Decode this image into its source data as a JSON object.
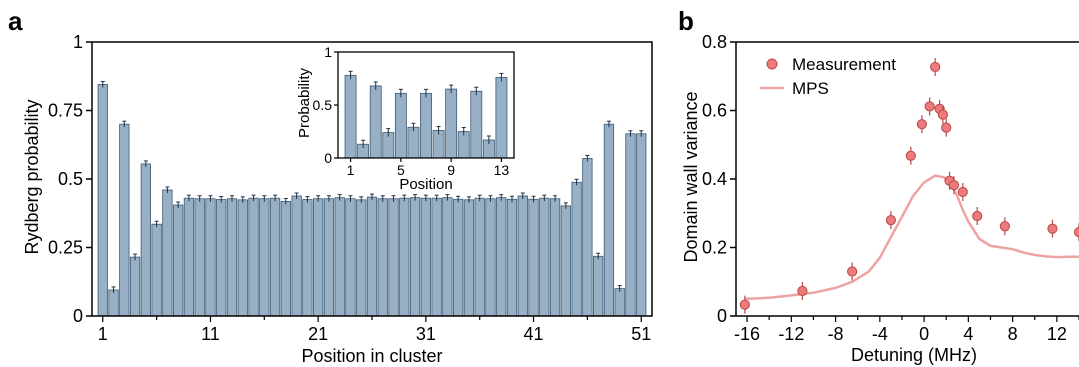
{
  "panels": {
    "a": "a",
    "b": "b"
  },
  "chart_data": [
    {
      "id": "a-main",
      "type": "bar",
      "xlabel": "Position in cluster",
      "ylabel": "Rydberg probability",
      "xlim": [
        0,
        52
      ],
      "ylim": [
        0,
        1
      ],
      "xticks": [
        1,
        11,
        21,
        31,
        41,
        51
      ],
      "yticks": [
        0,
        0.25,
        0.5,
        0.75,
        1
      ],
      "ytick_labels": [
        "0",
        "0.25",
        "0.5",
        "0.75",
        "1"
      ],
      "colors": {
        "bar_fill": "#97b0c6",
        "bar_edge": "#3f5a72"
      },
      "x": [
        1,
        2,
        3,
        4,
        5,
        6,
        7,
        8,
        9,
        10,
        11,
        12,
        13,
        14,
        15,
        16,
        17,
        18,
        19,
        20,
        21,
        22,
        23,
        24,
        25,
        26,
        27,
        28,
        29,
        30,
        31,
        32,
        33,
        34,
        35,
        36,
        37,
        38,
        39,
        40,
        41,
        42,
        43,
        44,
        45,
        46,
        47,
        48,
        49,
        50,
        51
      ],
      "values": [
        0.845,
        0.095,
        0.7,
        0.215,
        0.555,
        0.335,
        0.46,
        0.405,
        0.43,
        0.428,
        0.428,
        0.425,
        0.428,
        0.424,
        0.43,
        0.428,
        0.43,
        0.418,
        0.438,
        0.425,
        0.428,
        0.428,
        0.432,
        0.428,
        0.424,
        0.434,
        0.428,
        0.428,
        0.43,
        0.432,
        0.43,
        0.43,
        0.432,
        0.426,
        0.424,
        0.43,
        0.428,
        0.432,
        0.426,
        0.438,
        0.426,
        0.43,
        0.428,
        0.402,
        0.488,
        0.575,
        0.218,
        0.7,
        0.1,
        0.665,
        0.665
      ]
    },
    {
      "id": "a-inset",
      "type": "bar",
      "xlabel": "Position",
      "ylabel": "Probability",
      "xlim": [
        0,
        14
      ],
      "ylim": [
        0,
        1
      ],
      "xticks": [
        1,
        5,
        9,
        13
      ],
      "yticks": [
        0,
        0.5,
        1
      ],
      "ytick_labels": [
        "0",
        "0.5",
        "1"
      ],
      "colors": {
        "bar_fill": "#97b0c6",
        "bar_edge": "#3f5a72"
      },
      "x": [
        1,
        2,
        3,
        4,
        5,
        6,
        7,
        8,
        9,
        10,
        11,
        12,
        13
      ],
      "values": [
        0.78,
        0.13,
        0.68,
        0.24,
        0.61,
        0.29,
        0.61,
        0.26,
        0.65,
        0.25,
        0.63,
        0.17,
        0.76
      ]
    },
    {
      "id": "b",
      "type": "scatter",
      "xlabel": "Detuning (MHz)",
      "ylabel": "Domain wall variance",
      "xlim": [
        -17,
        14
      ],
      "ylim": [
        0,
        0.8
      ],
      "xticks": [
        -16,
        -12,
        -8,
        -4,
        0,
        4,
        8,
        12
      ],
      "yticks": [
        0,
        0.2,
        0.4,
        0.6,
        0.8
      ],
      "ytick_labels": [
        "0",
        "0.2",
        "0.4",
        "0.6",
        "0.8"
      ],
      "legend": "top-left",
      "colors": {
        "marker_fill": "#ee7b7b",
        "marker_edge": "#b94848",
        "line": "#eea3a3"
      },
      "series": [
        {
          "name": "Measurement",
          "kind": "points",
          "x": [
            -16.2,
            -11,
            -6.5,
            -3,
            -1.2,
            -0.2,
            0.5,
            1.0,
            1.4,
            1.7,
            2.0,
            2.3,
            2.7,
            3.5,
            4.8,
            7.3,
            11.6,
            14.0
          ],
          "y": [
            0.033,
            0.073,
            0.13,
            0.28,
            0.468,
            0.56,
            0.612,
            0.727,
            0.605,
            0.588,
            0.55,
            0.395,
            0.382,
            0.362,
            0.292,
            0.262,
            0.255,
            0.245
          ]
        },
        {
          "name": "MPS",
          "kind": "line",
          "x": [
            -16.2,
            -14,
            -12,
            -10,
            -8,
            -6.5,
            -5,
            -4,
            -3,
            -2,
            -1,
            0,
            1,
            1.8,
            2.5,
            3,
            3.5,
            4,
            5,
            6,
            7,
            8,
            9,
            10,
            11,
            12,
            13,
            14
          ],
          "y": [
            0.05,
            0.053,
            0.06,
            0.068,
            0.082,
            0.1,
            0.13,
            0.17,
            0.23,
            0.29,
            0.35,
            0.39,
            0.41,
            0.405,
            0.38,
            0.35,
            0.31,
            0.275,
            0.225,
            0.205,
            0.2,
            0.195,
            0.185,
            0.178,
            0.174,
            0.172,
            0.173,
            0.173
          ]
        }
      ]
    }
  ]
}
